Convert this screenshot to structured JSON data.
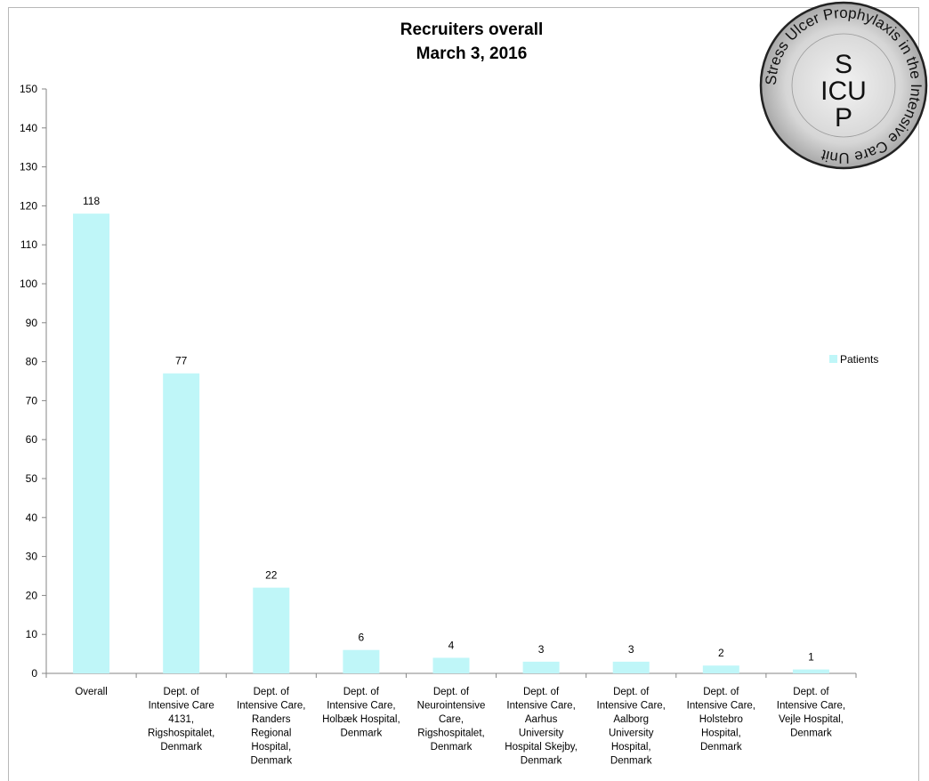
{
  "chart_data": {
    "type": "bar",
    "title": "Recruiters overall",
    "subtitle": "March 3, 2016",
    "xlabel": "",
    "ylabel": "",
    "ylim": [
      0,
      150
    ],
    "ytick_step": 10,
    "grid": false,
    "legend_position": "right",
    "colors": {
      "bar": "#bff6f8"
    },
    "categories": [
      [
        "Overall"
      ],
      [
        "Dept. of",
        "Intensive Care",
        "4131,",
        "Rigshospitalet,",
        "Denmark"
      ],
      [
        "Dept. of",
        "Intensive Care,",
        "Randers",
        "Regional",
        "Hospital,",
        "Denmark"
      ],
      [
        "Dept. of",
        "Intensive Care,",
        "Holbæk Hospital,",
        "Denmark"
      ],
      [
        "Dept. of",
        "Neurointensive",
        "Care,",
        "Rigshospitalet,",
        "Denmark"
      ],
      [
        "Dept. of",
        "Intensive Care,",
        "Aarhus",
        "University",
        "Hospital Skejby,",
        "Denmark"
      ],
      [
        "Dept. of",
        "Intensive Care,",
        "Aalborg",
        "University",
        "Hospital,",
        "Denmark"
      ],
      [
        "Dept. of",
        "Intensive Care,",
        "Holstebro",
        "Hospital,",
        "Denmark"
      ],
      [
        "Dept. of",
        "Intensive Care,",
        "Vejle Hospital,",
        "Denmark"
      ]
    ],
    "series": [
      {
        "name": "Patients",
        "values": [
          118,
          77,
          22,
          6,
          4,
          3,
          3,
          2,
          1
        ]
      }
    ]
  },
  "logo": {
    "name": "SUP-ICU study logo",
    "ring_text": "Stress Ulcer Prophylaxis in the Intensive Care Unit",
    "center_text": [
      "S",
      "ICU",
      "P"
    ]
  }
}
